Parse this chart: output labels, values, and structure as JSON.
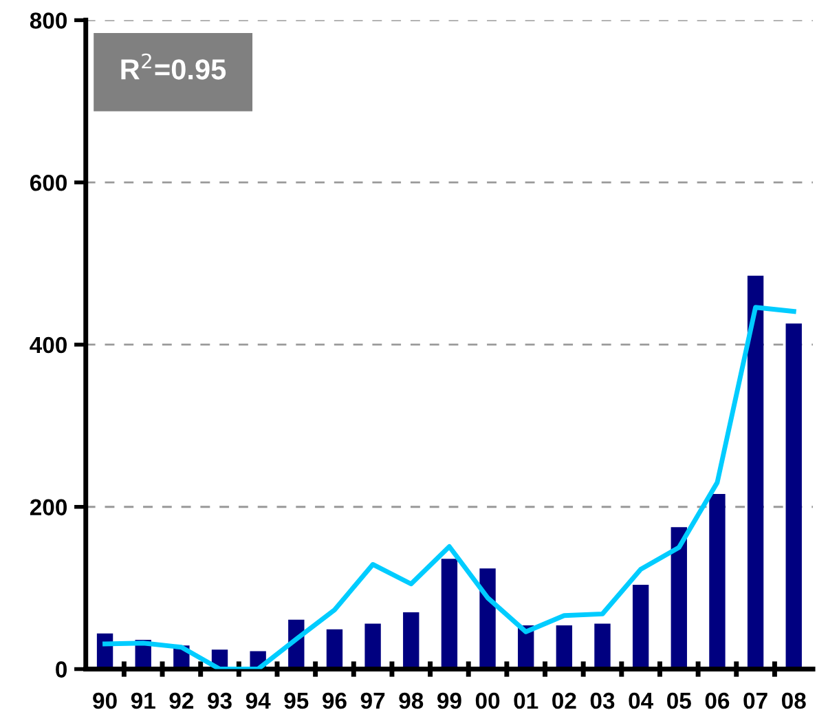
{
  "chart_data": {
    "type": "bar",
    "categories": [
      "90",
      "91",
      "92",
      "93",
      "94",
      "95",
      "96",
      "97",
      "98",
      "99",
      "00",
      "01",
      "02",
      "03",
      "04",
      "05",
      "06",
      "07",
      "08"
    ],
    "series": [
      {
        "color": "#000080",
        "values": [
          44,
          36,
          29,
          24,
          22,
          61,
          49,
          56,
          70,
          136,
          124,
          54,
          54,
          56,
          104,
          175,
          216,
          485,
          426
        ]
      },
      {
        "type": "line",
        "color": "#00ccff",
        "values": [
          31,
          32,
          27,
          0,
          0,
          37,
          73,
          129,
          105,
          151,
          88,
          46,
          66,
          68,
          123,
          150,
          230,
          446,
          441
        ]
      }
    ],
    "ylim": [
      0,
      800
    ],
    "yticks": [
      0,
      200,
      400,
      600,
      800
    ],
    "grid": "y",
    "annotations": [
      "R$^{2}$=0.95"
    ]
  }
}
